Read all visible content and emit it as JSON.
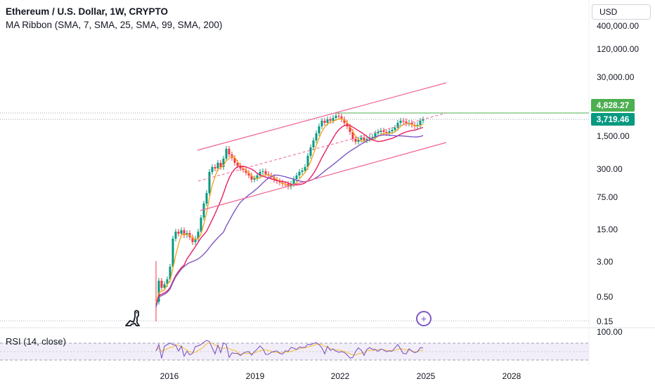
{
  "header": {
    "title": "Ethereum / U.S. Dollar, 1W, CRYPTO",
    "indicator": "MA Ribbon (SMA, 7, SMA, 25, SMA, 99, SMA, 200)",
    "currency_button": "USD"
  },
  "rsi": {
    "label": "RSI (14, close)"
  },
  "price_axis": {
    "labels": [
      "400,000.00",
      "120,000.00",
      "30,000.00",
      "1,500.00",
      "300.00",
      "75.00",
      "15.00",
      "3.00",
      "0.50",
      "0.15"
    ],
    "badge_high": "4,828.27",
    "badge_current": "3,719.46",
    "rsi_top": "100.00"
  },
  "time_axis": {
    "labels": [
      "2016",
      "2019",
      "2022",
      "2025",
      "2028"
    ]
  },
  "colors": {
    "up": "#089981",
    "down": "#f23645",
    "ma7": "#f5a623",
    "ma25": "#e91e63",
    "ma99": "#7e57c2",
    "channel": "#f06292",
    "high_line": "#4caf50",
    "rsi": "#7e57c2",
    "rsi_ma": "#f5c342"
  },
  "icons": {
    "logo": "dino-logo-icon",
    "add": "plus-circle-icon"
  }
}
